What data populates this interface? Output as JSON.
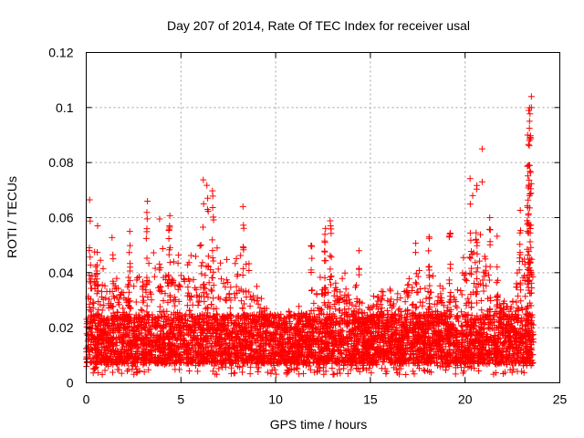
{
  "chart_data": {
    "type": "scatter",
    "title": "Day 207 of 2014, Rate Of TEC Index for receiver usal",
    "xlabel": "GPS time / hours",
    "ylabel": "ROTI / TECUs",
    "xlim": [
      0,
      25
    ],
    "ylim": [
      0,
      0.12
    ],
    "xticks": [
      0,
      5,
      10,
      15,
      20,
      25
    ],
    "xtick_labels": [
      "0",
      "5",
      "10",
      "15",
      "20",
      "25"
    ],
    "yticks": [
      0,
      0.02,
      0.04,
      0.06,
      0.08,
      0.1,
      0.12
    ],
    "ytick_labels": [
      "0",
      "0.02",
      "0.04",
      "0.06",
      "0.08",
      "0.1",
      "0.12"
    ],
    "grid": true,
    "marker": "+",
    "marker_color": "#ff0000",
    "series": [
      {
        "name": "ROTI",
        "x_range": [
          0,
          23.6
        ],
        "baseline_range": [
          0.003,
          0.03
        ],
        "notable_points": [
          {
            "x": 0.6,
            "y": 0.057
          },
          {
            "x": 2.3,
            "y": 0.055
          },
          {
            "x": 3.2,
            "y": 0.056
          },
          {
            "x": 4.4,
            "y": 0.057
          },
          {
            "x": 6.2,
            "y": 0.065
          },
          {
            "x": 6.4,
            "y": 0.063
          },
          {
            "x": 8.3,
            "y": 0.049
          },
          {
            "x": 12.6,
            "y": 0.051
          },
          {
            "x": 12.9,
            "y": 0.057
          },
          {
            "x": 14.4,
            "y": 0.048
          },
          {
            "x": 18.1,
            "y": 0.053
          },
          {
            "x": 20.4,
            "y": 0.068
          },
          {
            "x": 20.9,
            "y": 0.073
          },
          {
            "x": 20.9,
            "y": 0.085
          },
          {
            "x": 21.3,
            "y": 0.06
          },
          {
            "x": 23.3,
            "y": 0.09
          },
          {
            "x": 23.4,
            "y": 0.095
          },
          {
            "x": 23.5,
            "y": 0.104
          },
          {
            "x": 23.5,
            "y": 0.1
          },
          {
            "x": 23.4,
            "y": 0.068
          }
        ]
      }
    ]
  }
}
